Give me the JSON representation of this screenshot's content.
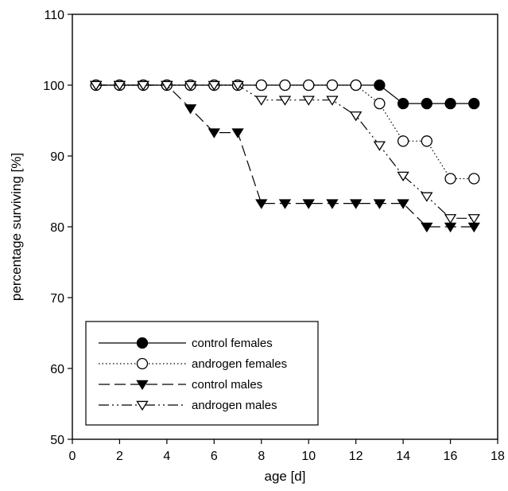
{
  "chart_data": {
    "type": "line",
    "xlabel": "age [d]",
    "ylabel": "percentage surviving [%]",
    "xlim": [
      0,
      18
    ],
    "ylim": [
      50,
      110
    ],
    "xticks": [
      0,
      2,
      4,
      6,
      8,
      10,
      12,
      14,
      16,
      18
    ],
    "yticks": [
      50,
      60,
      70,
      80,
      90,
      100,
      110
    ],
    "grid": false,
    "legend_position": "bottom-left",
    "series": [
      {
        "name": "control females",
        "line_style": "solid",
        "marker": "filled-circle",
        "x": [
          1,
          2,
          3,
          4,
          5,
          6,
          7,
          8,
          9,
          10,
          11,
          12,
          13,
          14,
          15,
          16,
          17
        ],
        "y": [
          100,
          100,
          100,
          100,
          100,
          100,
          100,
          100,
          100,
          100,
          100,
          100,
          100,
          97.4,
          97.4,
          97.4,
          97.4
        ]
      },
      {
        "name": "androgen females",
        "line_style": "dotted",
        "marker": "open-circle",
        "x": [
          1,
          2,
          3,
          4,
          5,
          6,
          7,
          8,
          9,
          10,
          11,
          12,
          13,
          14,
          15,
          16,
          17
        ],
        "y": [
          100,
          100,
          100,
          100,
          100,
          100,
          100,
          100,
          100,
          100,
          100,
          100,
          97.4,
          92.1,
          92.1,
          86.8,
          86.8
        ]
      },
      {
        "name": "control males",
        "line_style": "dashed",
        "marker": "filled-triangle-down",
        "x": [
          1,
          2,
          3,
          4,
          5,
          6,
          7,
          8,
          9,
          10,
          11,
          12,
          13,
          14,
          15,
          16,
          17
        ],
        "y": [
          100,
          100,
          100,
          100,
          96.7,
          93.3,
          93.3,
          83.3,
          83.3,
          83.3,
          83.3,
          83.3,
          83.3,
          83.3,
          80,
          80,
          80
        ]
      },
      {
        "name": "androgen males",
        "line_style": "dash-dot-dot",
        "marker": "open-triangle-down",
        "x": [
          1,
          2,
          3,
          4,
          5,
          6,
          7,
          8,
          9,
          10,
          11,
          12,
          13,
          14,
          15,
          16,
          17
        ],
        "y": [
          100,
          100,
          100,
          100,
          100,
          100,
          100,
          97.9,
          97.9,
          97.9,
          97.9,
          95.7,
          91.5,
          87.2,
          84.3,
          81.2,
          81.2
        ]
      }
    ]
  }
}
